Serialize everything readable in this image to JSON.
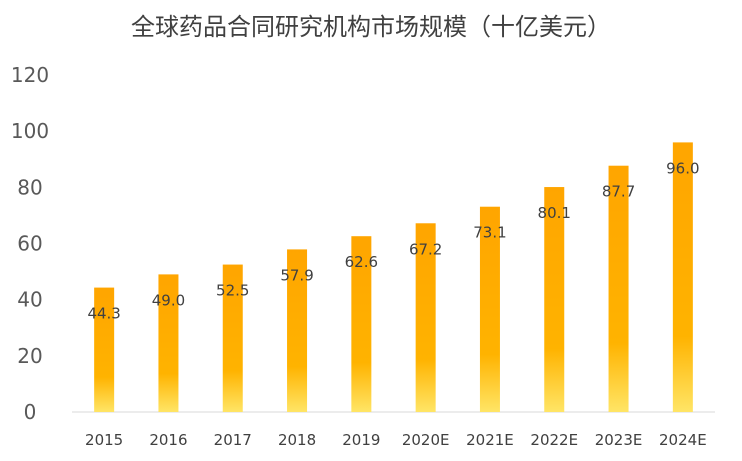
{
  "chart_data": {
    "type": "bar",
    "title": "全球药品合同研究机构市场规模（十亿美元）",
    "categories": [
      "2015",
      "2016",
      "2017",
      "2018",
      "2019",
      "2020E",
      "2021E",
      "2022E",
      "2023E",
      "2024E"
    ],
    "series": [
      {
        "values": [
          44.3,
          49.0,
          52.5,
          57.9,
          62.6,
          67.2,
          73.1,
          80.1,
          87.7,
          96.0
        ]
      }
    ],
    "data_labels": [
      "44.3",
      "49.0",
      "52.5",
      "57.9",
      "62.6",
      "67.2",
      "73.1",
      "80.1",
      "87.7",
      "96.0"
    ],
    "yticks": [
      "0",
      "20",
      "40",
      "60",
      "80",
      "100",
      "120"
    ],
    "ylim": [
      0,
      120
    ],
    "grid": false,
    "legend": "none",
    "colors": {
      "bar_top": "#FFA500",
      "bar_bottom": "#FFE566",
      "axis": "#D9D9D9"
    }
  }
}
